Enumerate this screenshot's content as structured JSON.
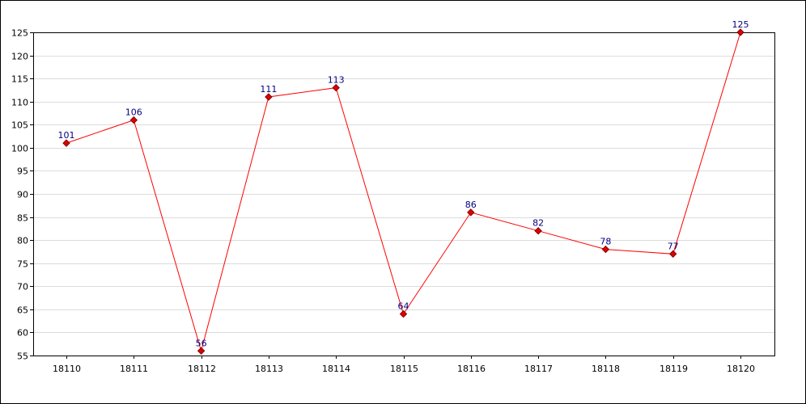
{
  "chart_data": {
    "type": "line",
    "title": "",
    "xlabel": "",
    "ylabel": "",
    "categories": [
      "18110",
      "18111",
      "18112",
      "18113",
      "18114",
      "18115",
      "18116",
      "18117",
      "18118",
      "18119",
      "18120"
    ],
    "series": [
      {
        "values": [
          101,
          106,
          56,
          111,
          113,
          64,
          86,
          82,
          78,
          77,
          125
        ],
        "color": "#ff0000",
        "marker": "diamond",
        "marker_color": "#e00000"
      }
    ],
    "ylim": [
      55,
      125
    ],
    "yticks": [
      "55",
      "60",
      "65",
      "70",
      "75",
      "80",
      "85",
      "90",
      "95",
      "100",
      "105",
      "110",
      "115",
      "120",
      "125"
    ],
    "grid": "horizontal",
    "legend": "none",
    "colors": {
      "line": "#ff0000",
      "grid": "#dcdcdc",
      "axis": "#000000",
      "data_label": "#000080"
    }
  }
}
